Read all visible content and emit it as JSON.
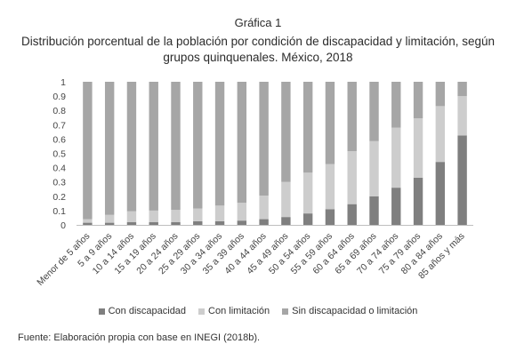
{
  "figure_label": "Gráfica 1",
  "source": "Fuente: Elaboración propia con base en INEGI (2018b).",
  "chart_data": {
    "type": "bar",
    "stacked": true,
    "title": "Distribución porcentual de la población por condición de discapacidad y limitación, según grupos quinquenales. México, 2018",
    "xlabel": "",
    "ylabel": "",
    "ylim": [
      0,
      1
    ],
    "yticks": [
      "0",
      "0.1",
      "0.2",
      "0.3",
      "0.4",
      "0.5",
      "0.6",
      "0.7",
      "0.8",
      "0.9",
      "1"
    ],
    "grid": false,
    "legend_position": "bottom",
    "categories": [
      "Menor de 5 años",
      "5 a 9 años",
      "10 a 14 años",
      "15 a 19 años",
      "20 a 24 años",
      "25 a 29 años",
      "30 a 34 años",
      "35 a 39 años",
      "40 a 44 años",
      "45 a 49 años",
      "50 a 54 años",
      "55 a 59 años",
      "60 a 64 años",
      "65 a 69 años",
      "70 a 74 años",
      "75 a 79 años",
      "80 a 84 años",
      "85 años y más"
    ],
    "series": [
      {
        "name": "Con discapacidad",
        "color": "#7f7f7f",
        "values": [
          0.015,
          0.015,
          0.02,
          0.02,
          0.02,
          0.025,
          0.025,
          0.03,
          0.04,
          0.055,
          0.08,
          0.11,
          0.145,
          0.2,
          0.26,
          0.33,
          0.44,
          0.625
        ]
      },
      {
        "name": "Con limitación",
        "color": "#cdcdcd",
        "values": [
          0.025,
          0.055,
          0.075,
          0.08,
          0.085,
          0.09,
          0.11,
          0.125,
          0.165,
          0.245,
          0.285,
          0.315,
          0.37,
          0.385,
          0.42,
          0.415,
          0.39,
          0.275
        ]
      },
      {
        "name": "Sin discapacidad o limitación",
        "color": "#a6a6a6",
        "values": [
          0.96,
          0.93,
          0.905,
          0.9,
          0.895,
          0.885,
          0.865,
          0.845,
          0.795,
          0.7,
          0.635,
          0.575,
          0.485,
          0.415,
          0.32,
          0.255,
          0.17,
          0.1
        ]
      }
    ]
  }
}
